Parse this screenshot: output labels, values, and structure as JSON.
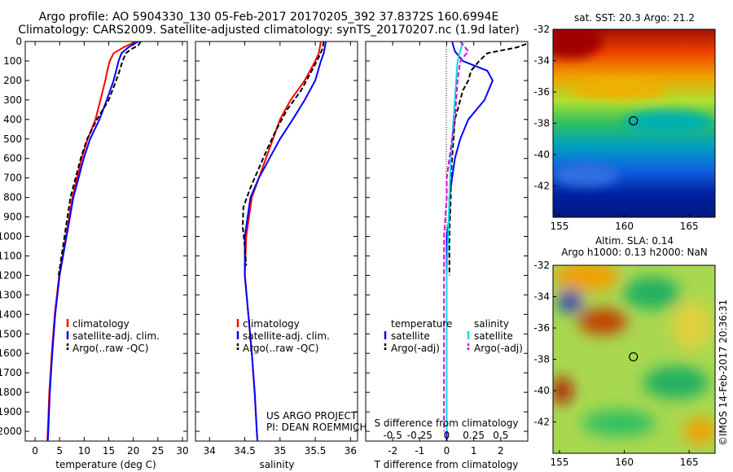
{
  "header": {
    "line1": "Argo profile: AO 5904330_130 05-Feb-2017 20170205_392 37.8372S 160.6994E",
    "line2": "Climatology: CARS2009. Satellite-adjusted climatology: synTS_20170207.nc (1.9d later)"
  },
  "credit": {
    "line1": "US ARGO PROJECT",
    "line2": "PI: DEAN ROEMMICH"
  },
  "watermark": "©IMOS 14-Feb-2017 20:36:31",
  "colors": {
    "climatology": "#ff0000",
    "satellite": "#0000ff",
    "argo": "#000000",
    "sat_salinity": "#00e0e0",
    "argo_salinity": "#e000e0"
  },
  "chart_data": [
    {
      "type": "line",
      "xlabel": "temperature (deg C)",
      "ylabel": "",
      "xlim": [
        -2,
        31
      ],
      "ylim": [
        2050,
        0
      ],
      "xticks": [
        0,
        5,
        10,
        15,
        20,
        25,
        30
      ],
      "yticks": [
        0,
        100,
        200,
        300,
        400,
        500,
        600,
        700,
        800,
        900,
        1000,
        1100,
        1200,
        1300,
        1400,
        1500,
        1600,
        1700,
        1800,
        1900,
        2000
      ],
      "legend": [
        "climatology",
        "satellite-adj. clim.",
        "Argo(..raw -QC)"
      ],
      "series": [
        {
          "name": "climatology",
          "color": "#ff0000",
          "depth": [
            0,
            30,
            60,
            100,
            150,
            200,
            300,
            400,
            500,
            600,
            800,
            1000,
            1200,
            1400,
            1600,
            1800,
            2000,
            2050
          ],
          "values": [
            20.5,
            18,
            16,
            15.2,
            14.7,
            14.3,
            13.3,
            12.3,
            10.7,
            9.5,
            7.6,
            6.3,
            4.9,
            4.0,
            3.4,
            2.9,
            2.6,
            2.5
          ]
        },
        {
          "name": "satellite-adj. clim.",
          "color": "#0000ff",
          "depth": [
            0,
            30,
            60,
            100,
            150,
            200,
            300,
            400,
            500,
            600,
            800,
            1000,
            1200,
            1400,
            1600,
            1800,
            2000,
            2050
          ],
          "values": [
            21,
            19,
            17.6,
            17,
            16.5,
            16,
            14.6,
            13.1,
            11.2,
            9.9,
            7.8,
            6.4,
            5.0,
            4.1,
            3.5,
            3.0,
            2.7,
            2.6
          ]
        },
        {
          "name": "Argo(..raw -QC)",
          "color": "#000000",
          "dash": true,
          "depth": [
            0,
            20,
            40,
            60,
            100,
            150,
            200,
            300,
            400,
            500,
            600,
            800,
            1000,
            1200
          ],
          "values": [
            21.5,
            21,
            19.5,
            18.5,
            17.8,
            17.2,
            16.5,
            15,
            12.6,
            10.6,
            9.3,
            7.2,
            6.0,
            4.8
          ]
        }
      ]
    },
    {
      "type": "line",
      "xlabel": "salinity",
      "ylabel": "",
      "xlim": [
        33.8,
        36.1
      ],
      "ylim": [
        2050,
        0
      ],
      "xticks": [
        34,
        34.5,
        35,
        35.5,
        36
      ],
      "xticklabels": [
        "34",
        "34.5",
        "35",
        "35.5",
        "36"
      ],
      "legend": [
        "climatology",
        "satellite-adj. clim.",
        "Argo(..raw -QC)"
      ],
      "series": [
        {
          "name": "climatology",
          "color": "#ff0000",
          "depth": [
            0,
            60,
            100,
            200,
            300,
            400,
            500,
            600,
            700,
            800,
            1000,
            1200,
            1400,
            1600,
            1800,
            2000,
            2050
          ],
          "values": [
            35.58,
            35.55,
            35.5,
            35.35,
            35.15,
            35.0,
            34.9,
            34.8,
            34.7,
            34.6,
            34.52,
            34.5,
            34.55,
            34.6,
            34.64,
            34.67,
            34.68
          ]
        },
        {
          "name": "satellite-adj. clim.",
          "color": "#0000ff",
          "depth": [
            0,
            60,
            100,
            200,
            300,
            400,
            500,
            600,
            700,
            800,
            1000,
            1200,
            1400,
            1600,
            1800,
            2000,
            2050
          ],
          "values": [
            35.65,
            35.62,
            35.58,
            35.5,
            35.35,
            35.18,
            35.0,
            34.85,
            34.7,
            34.58,
            34.5,
            34.5,
            34.55,
            34.6,
            34.64,
            34.67,
            34.68
          ]
        },
        {
          "name": "Argo(..raw -QC)",
          "color": "#000000",
          "dash": true,
          "depth": [
            0,
            40,
            80,
            150,
            250,
            350,
            450,
            550,
            650,
            750,
            850,
            950,
            1050,
            1150
          ],
          "values": [
            35.62,
            35.6,
            35.55,
            35.45,
            35.3,
            35.1,
            34.95,
            34.82,
            34.7,
            34.58,
            34.48,
            34.47,
            34.5,
            34.52
          ]
        }
      ]
    },
    {
      "type": "line",
      "xlabel": "T difference from climatology",
      "x2label": "S difference from climatology",
      "xlim": [
        -3,
        3
      ],
      "ylim": [
        2050,
        0
      ],
      "xticks": [
        -2,
        -1,
        0,
        1,
        2
      ],
      "x2ticklabels": [
        "-0.5",
        "-0.25",
        "0",
        "0.25",
        "0.5"
      ],
      "legend_temperature": [
        "temperature",
        "satellite",
        "Argo(-adj)"
      ],
      "legend_salinity": [
        "salinity",
        "satellite",
        "Argo(-adj)"
      ],
      "series": [
        {
          "name": "satellite",
          "color": "#0000ff",
          "depth": [
            0,
            50,
            100,
            150,
            200,
            300,
            400,
            500,
            600,
            700,
            800,
            900,
            1000,
            1200,
            1400,
            1600,
            1800,
            2000,
            2050
          ],
          "values": [
            0.2,
            0.3,
            0.6,
            1.5,
            1.7,
            1.4,
            0.8,
            0.5,
            0.3,
            0.2,
            0.1,
            0.1,
            0,
            0,
            0,
            0,
            0,
            0,
            0
          ]
        },
        {
          "name": "Argo(-adj)",
          "color": "#000000",
          "dash": true,
          "depth": [
            0,
            30,
            60,
            100,
            150,
            200,
            250,
            300,
            400,
            500,
            600,
            700,
            800,
            900,
            1000,
            1100,
            1200
          ],
          "values": [
            3.2,
            2.6,
            1.5,
            1.2,
            0.9,
            0.8,
            0.6,
            0.5,
            0.3,
            0.25,
            0.2,
            0.15,
            0.15,
            0.12,
            0.1,
            0.1,
            0.1
          ]
        },
        {
          "name": "satellite (salinity)",
          "color": "#00e0e0",
          "depth": [
            0,
            50,
            100,
            200,
            300,
            400,
            500,
            600,
            800,
            1000,
            1200,
            1400,
            1600,
            1800,
            2000
          ],
          "values": [
            0.6,
            0.5,
            0.4,
            0.35,
            0.3,
            0.25,
            0.2,
            0.15,
            0.1,
            0.05,
            0,
            0,
            0,
            0,
            0
          ]
        },
        {
          "name": "Argo(-adj) (salinity)",
          "color": "#e000e0",
          "dash": true,
          "depth": [
            0,
            50,
            100,
            200,
            300,
            400,
            500,
            600,
            700,
            800,
            900,
            1000,
            1100,
            1200,
            1400,
            1600,
            1800,
            2000
          ],
          "values": [
            0.5,
            0.8,
            0.5,
            0.4,
            0.35,
            0.3,
            0.2,
            0.1,
            0,
            0,
            -0.05,
            -0.1,
            -0.1,
            -0.1,
            -0.1,
            -0.1,
            -0.1,
            -0.1
          ]
        }
      ]
    },
    {
      "type": "heatmap",
      "title": "sat. SST: 20.3  Argo: 21.2",
      "xlim": [
        154.5,
        167
      ],
      "ylim": [
        -44,
        -32
      ],
      "xticks": [
        155,
        160,
        165
      ],
      "yticks": [
        -32,
        -34,
        -36,
        -38,
        -40,
        -42
      ],
      "marker": {
        "lon": 160.7,
        "lat": -37.84
      }
    },
    {
      "type": "heatmap",
      "title": "Altim. SLA: 0.14",
      "subtitle": "Argo h1000: 0.13  h2000: NaN",
      "xlim": [
        154.5,
        167
      ],
      "ylim": [
        -44,
        -32
      ],
      "xticks": [
        155,
        160,
        165
      ],
      "yticks": [
        -32,
        -34,
        -36,
        -38,
        -40,
        -42
      ],
      "marker": {
        "lon": 160.7,
        "lat": -37.84
      }
    }
  ]
}
